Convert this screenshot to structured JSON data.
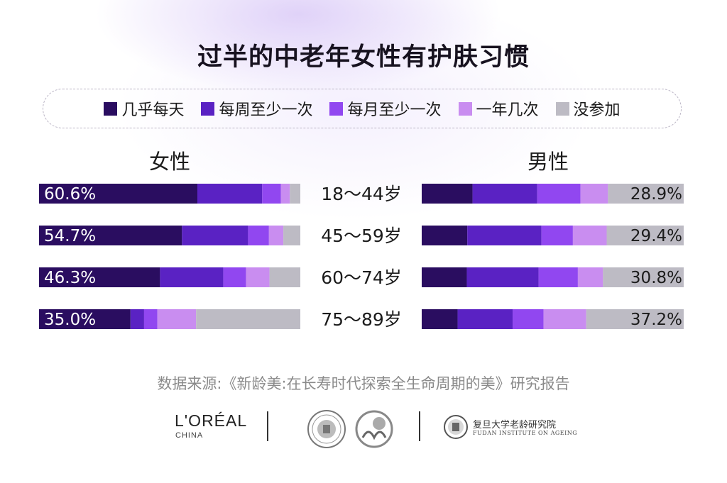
{
  "title": "过半的中老年女性有护肤习惯",
  "legend": [
    {
      "label": "几乎每天",
      "color": "#2a0d60"
    },
    {
      "label": "每周至少一次",
      "color": "#5a22c3"
    },
    {
      "label": "每月至少一次",
      "color": "#9147f0"
    },
    {
      "label": "一年几次",
      "color": "#c98df0"
    },
    {
      "label": "没参加",
      "color": "#bdbbc4"
    }
  ],
  "labels": {
    "female": "女性",
    "male": "男性"
  },
  "source": "数据来源:《新龄美:在长寿时代探索全生命周期的美》研究报告",
  "logos": {
    "loreal": "L'ORÉAL",
    "loreal_sub": "CHINA",
    "fudan_cn": "复旦大学老龄研究院",
    "fudan_en": "FUDAN INSTITUTE ON AGEING"
  },
  "chart_data": {
    "type": "bar",
    "stacked": true,
    "categories": [
      "18～44岁",
      "45～59岁",
      "60～74岁",
      "75～89岁"
    ],
    "series_names": [
      "几乎每天",
      "每周至少一次",
      "每月至少一次",
      "一年几次",
      "没参加"
    ],
    "female": {
      "label_values": [
        "60.6%",
        "54.7%",
        "46.3%",
        "35.0%"
      ],
      "segments": [
        [
          60.6,
          24.8,
          7.2,
          3.4,
          4.0
        ],
        [
          54.7,
          25.3,
          8.0,
          5.5,
          6.5
        ],
        [
          46.3,
          24.2,
          8.7,
          9.0,
          11.8
        ],
        [
          35.0,
          5.2,
          5.1,
          14.8,
          39.9
        ]
      ]
    },
    "male": {
      "label_values": [
        "28.9%",
        "29.4%",
        "30.8%",
        "37.2%"
      ],
      "segments": [
        [
          19.4,
          24.7,
          16.5,
          10.5,
          28.9
        ],
        [
          17.4,
          28.3,
          12.0,
          12.9,
          29.4
        ],
        [
          17.2,
          27.4,
          15.0,
          9.6,
          30.8
        ],
        [
          13.7,
          21.0,
          11.8,
          16.3,
          37.2
        ]
      ]
    },
    "xlim": [
      0,
      100
    ],
    "grid": false
  }
}
